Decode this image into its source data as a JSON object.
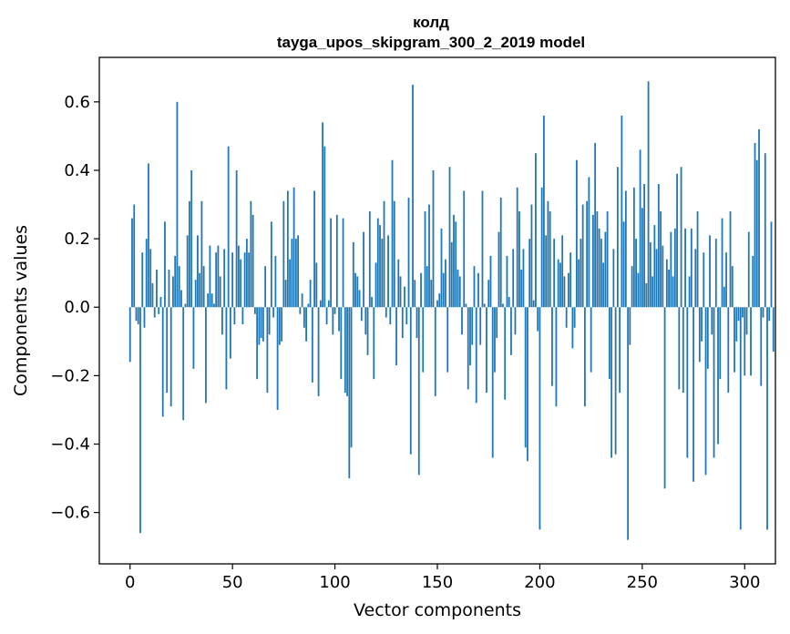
{
  "chart_data": {
    "type": "bar",
    "title": "колд",
    "subtitle": "tayga_upos_skipgram_300_2_2019 model",
    "xlabel": "Vector components",
    "ylabel": "Components values",
    "xlim": [
      -15,
      315
    ],
    "ylim": [
      -0.75,
      0.73
    ],
    "xticks": [
      0,
      50,
      100,
      150,
      200,
      250,
      300
    ],
    "xtick_labels": [
      "0",
      "50",
      "100",
      "150",
      "200",
      "250",
      "300"
    ],
    "yticks": [
      -0.6,
      -0.4,
      -0.2,
      0.0,
      0.2,
      0.4,
      0.6
    ],
    "ytick_labels": [
      "−0.6",
      "−0.4",
      "−0.2",
      "0.0",
      "0.2",
      "0.4",
      "0.6"
    ],
    "bar_color": "#1f77b4",
    "grid": false,
    "series": [
      {
        "values": [
          -0.16,
          0.26,
          0.3,
          -0.04,
          -0.05,
          -0.66,
          0.16,
          -0.06,
          0.2,
          0.42,
          0.17,
          0.07,
          -0.03,
          0.11,
          -0.02,
          0.03,
          -0.32,
          0.25,
          -0.25,
          0.11,
          -0.29,
          0.09,
          0.15,
          0.6,
          0.12,
          0.05,
          -0.33,
          0.01,
          0.21,
          0.31,
          0.4,
          -0.18,
          0.08,
          0.21,
          0.1,
          0.31,
          0.12,
          -0.28,
          0.04,
          0.18,
          0.04,
          0.01,
          0.16,
          0.18,
          0.09,
          -0.08,
          0.17,
          -0.24,
          0.47,
          -0.15,
          0.16,
          -0.05,
          0.4,
          0.18,
          0.14,
          -0.05,
          0.16,
          0.2,
          0.16,
          0.31,
          0.27,
          -0.02,
          -0.21,
          -0.11,
          -0.09,
          -0.1,
          0.12,
          -0.25,
          -0.08,
          0.25,
          -0.03,
          0.15,
          -0.3,
          -0.11,
          -0.1,
          0.31,
          0.08,
          0.34,
          0.14,
          0.2,
          0.35,
          0.2,
          0.21,
          -0.02,
          0.04,
          -0.06,
          -0.1,
          0.01,
          0.08,
          -0.22,
          0.34,
          0.13,
          -0.26,
          0.02,
          0.54,
          0.47,
          -0.05,
          0.02,
          0.26,
          -0.08,
          -0.02,
          0.27,
          -0.07,
          -0.21,
          0.26,
          -0.25,
          -0.26,
          -0.5,
          -0.41,
          0.19,
          0.1,
          0.09,
          0.05,
          -0.04,
          0.22,
          -0.08,
          -0.14,
          0.28,
          0.03,
          -0.21,
          0.13,
          0.26,
          0.24,
          0.2,
          0.31,
          -0.03,
          0.21,
          -0.05,
          0.43,
          0.31,
          -0.17,
          0.14,
          0.09,
          -0.09,
          0.06,
          -0.05,
          0.32,
          -0.43,
          0.65,
          0.08,
          -0.09,
          -0.49,
          0.1,
          -0.19,
          0.28,
          0.12,
          0.3,
          0.08,
          0.4,
          -0.26,
          0.02,
          0.04,
          0.23,
          0.1,
          0.14,
          -0.19,
          0.41,
          0.19,
          0.27,
          0.25,
          0.11,
          0.09,
          -0.08,
          0.34,
          0.01,
          -0.24,
          -0.17,
          -0.11,
          0.12,
          -0.28,
          0.1,
          -0.11,
          0.34,
          0.01,
          -0.25,
          0.08,
          0.15,
          -0.44,
          -0.19,
          -0.09,
          0.22,
          0.32,
          0.01,
          -0.27,
          0.15,
          0.03,
          -0.14,
          0.17,
          -0.08,
          0.35,
          0.28,
          0.11,
          0.17,
          -0.41,
          -0.45,
          0.2,
          0.3,
          0.02,
          0.45,
          -0.07,
          -0.65,
          0.35,
          0.56,
          0.21,
          0.31,
          0.28,
          -0.23,
          0.2,
          -0.29,
          0.14,
          0.13,
          0.21,
          0.09,
          -0.06,
          0.1,
          0.16,
          -0.12,
          -0.06,
          0.43,
          0.14,
          0.2,
          0.3,
          -0.29,
          0.31,
          0.38,
          -0.19,
          0.27,
          0.48,
          0.28,
          0.23,
          0.2,
          0.13,
          0.22,
          0.28,
          -0.21,
          -0.44,
          0.17,
          -0.43,
          0.41,
          -0.25,
          0.56,
          0.25,
          0.34,
          -0.68,
          -0.11,
          0.12,
          0.35,
          0.2,
          0.1,
          0.46,
          0.29,
          0.36,
          0.07,
          0.66,
          0.19,
          0.09,
          0.24,
          0.17,
          0.36,
          0.28,
          0.18,
          -0.53,
          0.14,
          0.11,
          0.22,
          0.09,
          0.23,
          0.39,
          -0.24,
          0.41,
          -0.25,
          0.23,
          -0.44,
          0.09,
          0.23,
          -0.51,
          0.17,
          0.28,
          -0.16,
          -0.1,
          0.16,
          -0.49,
          -0.18,
          0.21,
          -0.08,
          -0.44,
          0.2,
          -0.4,
          -0.21,
          0.26,
          0.06,
          0.16,
          -0.25,
          0.28,
          0.12,
          -0.19,
          -0.1,
          -0.04,
          -0.65,
          -0.03,
          -0.2,
          -0.08,
          0.22,
          -0.2,
          0.15,
          0.48,
          0.43,
          0.52,
          -0.23,
          -0.03,
          0.45,
          -0.65,
          -0.04,
          0.25,
          -0.13
        ]
      }
    ]
  }
}
